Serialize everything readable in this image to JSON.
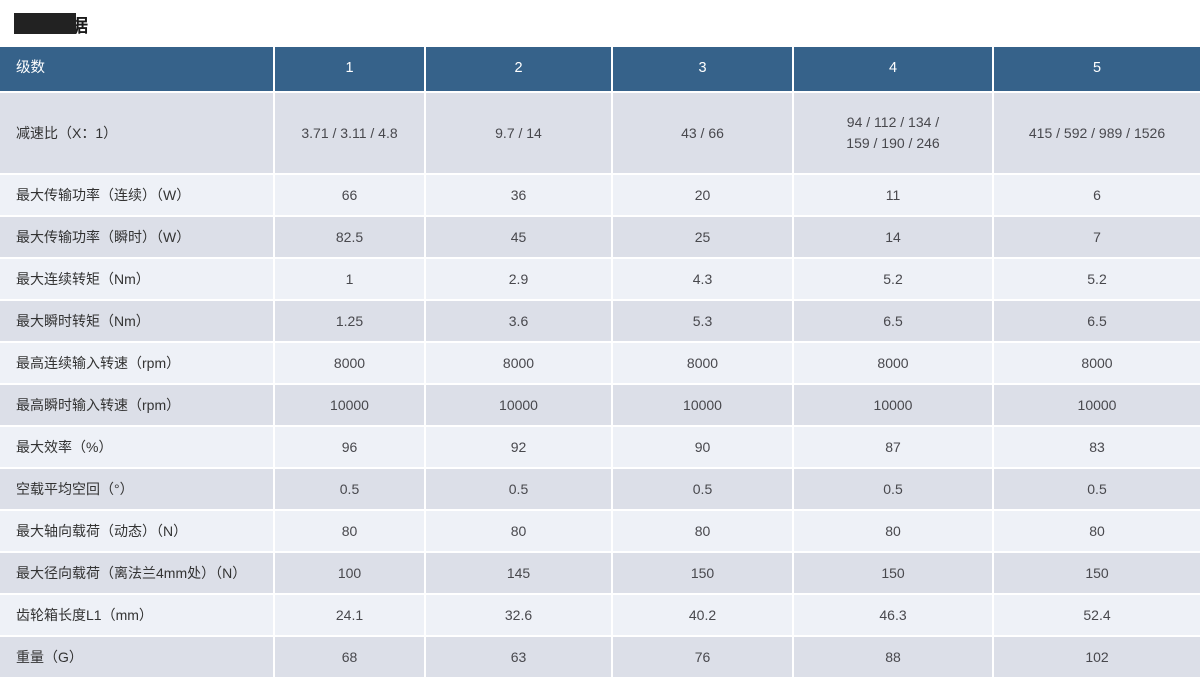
{
  "page": {
    "title_redacted_char": "据"
  },
  "table": {
    "header": {
      "label": "级数",
      "columns": [
        "1",
        "2",
        "3",
        "4",
        "5"
      ]
    },
    "rows": [
      {
        "label": "减速比（X：1）",
        "tall": true,
        "values": [
          "3.71 / 3.11 / 4.8",
          "9.7 / 14",
          "43 / 66",
          "94 / 112 / 134 /\n159 / 190 / 246",
          "415 / 592 / 989 / 1526"
        ]
      },
      {
        "label": "最大传输功率（连续）（W）",
        "values": [
          "66",
          "36",
          "20",
          "11",
          "6"
        ]
      },
      {
        "label": "最大传输功率（瞬时）（W）",
        "values": [
          "82.5",
          "45",
          "25",
          "14",
          "7"
        ]
      },
      {
        "label": "最大连续转矩（Nm）",
        "values": [
          "1",
          "2.9",
          "4.3",
          "5.2",
          "5.2"
        ]
      },
      {
        "label": "最大瞬时转矩（Nm）",
        "values": [
          "1.25",
          "3.6",
          "5.3",
          "6.5",
          "6.5"
        ]
      },
      {
        "label": "最高连续输入转速（rpm）",
        "values": [
          "8000",
          "8000",
          "8000",
          "8000",
          "8000"
        ]
      },
      {
        "label": "最高瞬时输入转速（rpm）",
        "values": [
          "10000",
          "10000",
          "10000",
          "10000",
          "10000"
        ]
      },
      {
        "label": "最大效率（%）",
        "values": [
          "96",
          "92",
          "90",
          "87",
          "83"
        ]
      },
      {
        "label": "空载平均空回（°）",
        "values": [
          "0.5",
          "0.5",
          "0.5",
          "0.5",
          "0.5"
        ]
      },
      {
        "label": "最大轴向载荷（动态）（N）",
        "values": [
          "80",
          "80",
          "80",
          "80",
          "80"
        ]
      },
      {
        "label": "最大径向载荷（离法兰4mm处）（N）",
        "values": [
          "100",
          "145",
          "150",
          "150",
          "150"
        ]
      },
      {
        "label": "齿轮箱长度L1（mm）",
        "values": [
          "24.1",
          "32.6",
          "40.2",
          "46.3",
          "52.4"
        ]
      },
      {
        "label": "重量（G）",
        "values": [
          "68",
          "63",
          "76",
          "88",
          "102"
        ]
      }
    ]
  },
  "colors": {
    "header_bg": "#36628a",
    "header_text": "#ffffff",
    "row_odd": "#dcdfe8",
    "row_even": "#eef1f7",
    "label_text": "#333333",
    "value_text": "#48484d",
    "redaction": "#222222"
  }
}
